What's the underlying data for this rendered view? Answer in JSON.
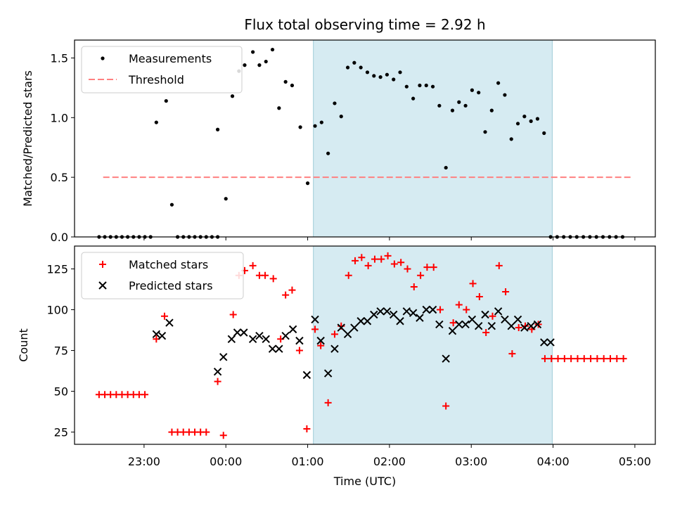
{
  "title": "Flux total observing time = 2.92 h",
  "chart_data": [
    {
      "type": "scatter",
      "panel": "top",
      "ylabel": "Matched/Predicted stars",
      "ylim": [
        0,
        1.65
      ],
      "yticks": [
        0.0,
        0.5,
        1.0,
        1.5
      ],
      "ytick_labels": [
        "0.0",
        "0.5",
        "1.0",
        "1.5"
      ],
      "xlim_hours": [
        -1.85,
        5.25
      ],
      "shaded_span_hours": [
        1.07,
        3.99
      ],
      "threshold": {
        "name": "Threshold",
        "value": 0.5,
        "x_range_hours": [
          -1.5,
          4.95
        ],
        "color": "#ff8080"
      },
      "legend": [
        "Measurements",
        "Threshold"
      ],
      "legend_placement": "upper-left",
      "series": [
        {
          "name": "Measurements",
          "color": "#000000",
          "x_hours": [
            -1.55,
            -1.48,
            -1.41,
            -1.34,
            -1.27,
            -1.2,
            -1.13,
            -1.06,
            -0.99,
            -0.92,
            -0.85,
            -0.73,
            -0.66,
            -0.59,
            -0.52,
            -0.45,
            -0.38,
            -0.31,
            -0.24,
            -0.17,
            -0.1,
            -0.1,
            0.0,
            0.08,
            0.16,
            0.23,
            0.33,
            0.41,
            0.49,
            0.57,
            0.65,
            0.73,
            0.81,
            0.91,
            1.0,
            1.09,
            1.17,
            1.25,
            1.33,
            1.41,
            1.49,
            1.57,
            1.65,
            1.73,
            1.81,
            1.89,
            1.97,
            2.05,
            2.13,
            2.21,
            2.29,
            2.37,
            2.45,
            2.53,
            2.61,
            2.69,
            2.77,
            2.85,
            2.93,
            3.01,
            3.09,
            3.17,
            3.25,
            3.33,
            3.41,
            3.49,
            3.57,
            3.65,
            3.73,
            3.81,
            3.89,
            3.97,
            4.05,
            4.13,
            4.21,
            4.29,
            4.37,
            4.45,
            4.53,
            4.61,
            4.69,
            4.77,
            4.85
          ],
          "y": [
            0,
            0,
            0,
            0,
            0,
            0,
            0,
            0,
            0,
            0,
            0.96,
            1.14,
            0.27,
            0,
            0,
            0,
            0,
            0,
            0,
            0,
            0,
            0.9,
            0.32,
            1.18,
            1.39,
            1.44,
            1.55,
            1.44,
            1.47,
            1.57,
            1.08,
            1.3,
            1.27,
            0.92,
            0.45,
            0.93,
            0.96,
            0.7,
            1.12,
            1.01,
            1.42,
            1.46,
            1.42,
            1.38,
            1.35,
            1.34,
            1.36,
            1.32,
            1.38,
            1.26,
            1.16,
            1.27,
            1.27,
            1.26,
            1.1,
            0.58,
            1.06,
            1.13,
            1.1,
            1.23,
            1.21,
            0.88,
            1.06,
            1.29,
            1.19,
            0.82,
            0.95,
            1.01,
            0.97,
            0.99,
            0.87,
            0,
            0,
            0,
            0,
            0,
            0,
            0,
            0,
            0,
            0,
            0,
            0
          ]
        }
      ]
    },
    {
      "type": "scatter",
      "panel": "bottom",
      "xlabel": "Time (UTC)",
      "ylabel": "Count",
      "ylim": [
        17.5,
        139
      ],
      "yticks": [
        25,
        50,
        75,
        100,
        125
      ],
      "ytick_labels": [
        "25",
        "50",
        "75",
        "100",
        "125"
      ],
      "xlim_hours": [
        -1.85,
        5.25
      ],
      "xticks_hours": [
        -1,
        0,
        1,
        2,
        3,
        4,
        5
      ],
      "xtick_labels": [
        "23:00",
        "00:00",
        "01:00",
        "02:00",
        "03:00",
        "04:00",
        "05:00"
      ],
      "shaded_span_hours": [
        1.07,
        3.99
      ],
      "legend": [
        "Matched stars",
        "Predicted stars"
      ],
      "legend_placement": "upper-left",
      "series": [
        {
          "name": "Matched stars",
          "marker": "plus",
          "color": "#ff0000",
          "x_hours": [
            -1.55,
            -1.48,
            -1.41,
            -1.34,
            -1.27,
            -1.2,
            -1.13,
            -1.06,
            -0.99,
            -0.85,
            -0.75,
            -0.66,
            -0.59,
            -0.52,
            -0.45,
            -0.38,
            -0.31,
            -0.24,
            -0.1,
            -0.03,
            0.09,
            0.16,
            0.23,
            0.33,
            0.41,
            0.48,
            0.58,
            0.67,
            0.73,
            0.81,
            0.9,
            0.99,
            1.09,
            1.16,
            1.25,
            1.33,
            1.41,
            1.5,
            1.58,
            1.66,
            1.74,
            1.82,
            1.9,
            1.98,
            2.06,
            2.14,
            2.22,
            2.3,
            2.38,
            2.46,
            2.54,
            2.62,
            2.69,
            2.78,
            2.85,
            2.94,
            3.02,
            3.1,
            3.18,
            3.26,
            3.34,
            3.42,
            3.5,
            3.58,
            3.66,
            3.74,
            3.82,
            3.9,
            3.98,
            4.06,
            4.14,
            4.22,
            4.3,
            4.38,
            4.46,
            4.54,
            4.62,
            4.7,
            4.78,
            4.86
          ],
          "y": [
            48,
            48,
            48,
            48,
            48,
            48,
            48,
            48,
            48,
            82,
            96,
            25,
            25,
            25,
            25,
            25,
            25,
            25,
            56,
            23,
            97,
            121,
            124,
            127,
            121,
            121,
            119,
            82,
            109,
            112,
            75,
            27,
            88,
            78,
            43,
            85,
            90,
            121,
            130,
            132,
            127,
            131,
            131,
            133,
            128,
            129,
            125,
            114,
            121,
            126,
            126,
            100,
            41,
            92,
            103,
            100,
            116,
            108,
            86,
            96,
            127,
            111,
            73,
            89,
            90,
            88,
            91,
            70,
            70,
            70,
            70,
            70,
            70,
            70,
            70,
            70,
            70,
            70,
            70,
            70
          ]
        },
        {
          "name": "Predicted stars",
          "marker": "x",
          "color": "#000000",
          "x_hours": [
            -0.85,
            -0.78,
            -0.69,
            -0.1,
            -0.03,
            0.07,
            0.14,
            0.22,
            0.33,
            0.41,
            0.49,
            0.57,
            0.65,
            0.73,
            0.82,
            0.9,
            0.99,
            1.09,
            1.16,
            1.25,
            1.33,
            1.41,
            1.49,
            1.57,
            1.65,
            1.73,
            1.81,
            1.89,
            1.97,
            2.05,
            2.13,
            2.21,
            2.29,
            2.37,
            2.45,
            2.53,
            2.61,
            2.69,
            2.77,
            2.85,
            2.93,
            3.01,
            3.09,
            3.17,
            3.25,
            3.33,
            3.41,
            3.49,
            3.57,
            3.65,
            3.73,
            3.81,
            3.89,
            3.97
          ],
          "y": [
            85,
            84,
            92,
            62,
            71,
            82,
            86,
            86,
            82,
            84,
            82,
            76,
            76,
            84,
            88,
            81,
            60,
            94,
            81,
            61,
            76,
            89,
            85,
            89,
            93,
            93,
            97,
            99,
            99,
            97,
            93,
            99,
            98,
            95,
            100,
            100,
            91,
            70,
            87,
            91,
            91,
            94,
            90,
            97,
            90,
            99,
            94,
            90,
            94,
            89,
            90,
            91,
            80,
            80
          ]
        }
      ]
    }
  ]
}
